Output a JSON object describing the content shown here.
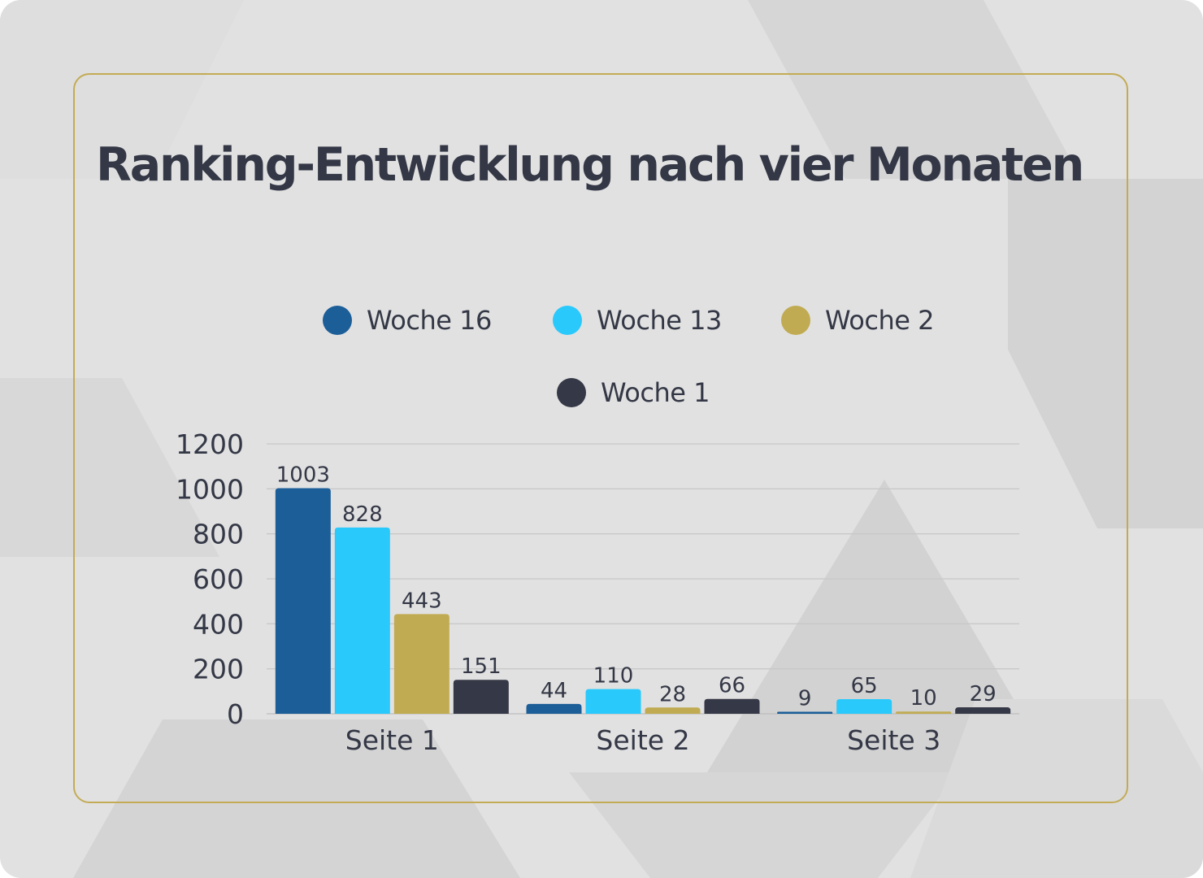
{
  "colors": {
    "background": "#e1e1e1",
    "border": "#c3ab55",
    "text": "#343846",
    "gridline": "#c8c8c8"
  },
  "chart_data": {
    "type": "bar",
    "title": "Ranking-Entwicklung nach vier Monaten",
    "xlabel": "",
    "ylabel": "",
    "categories": [
      "Seite 1",
      "Seite 2",
      "Seite 3"
    ],
    "series": [
      {
        "name": "Woche 16",
        "color": "#1b5e98",
        "values": [
          1003,
          44,
          9
        ]
      },
      {
        "name": "Woche 13",
        "color": "#29c9fc",
        "values": [
          828,
          110,
          65
        ]
      },
      {
        "name": "Woche 2",
        "color": "#c1ab52",
        "values": [
          443,
          28,
          10
        ]
      },
      {
        "name": "Woche 1",
        "color": "#353846",
        "values": [
          151,
          66,
          29
        ]
      }
    ],
    "ylim": [
      0,
      1200
    ],
    "yticks": [
      0,
      200,
      400,
      600,
      800,
      1000,
      1200
    ],
    "grid": true,
    "legend_position": "top-center",
    "data_labels": true
  }
}
